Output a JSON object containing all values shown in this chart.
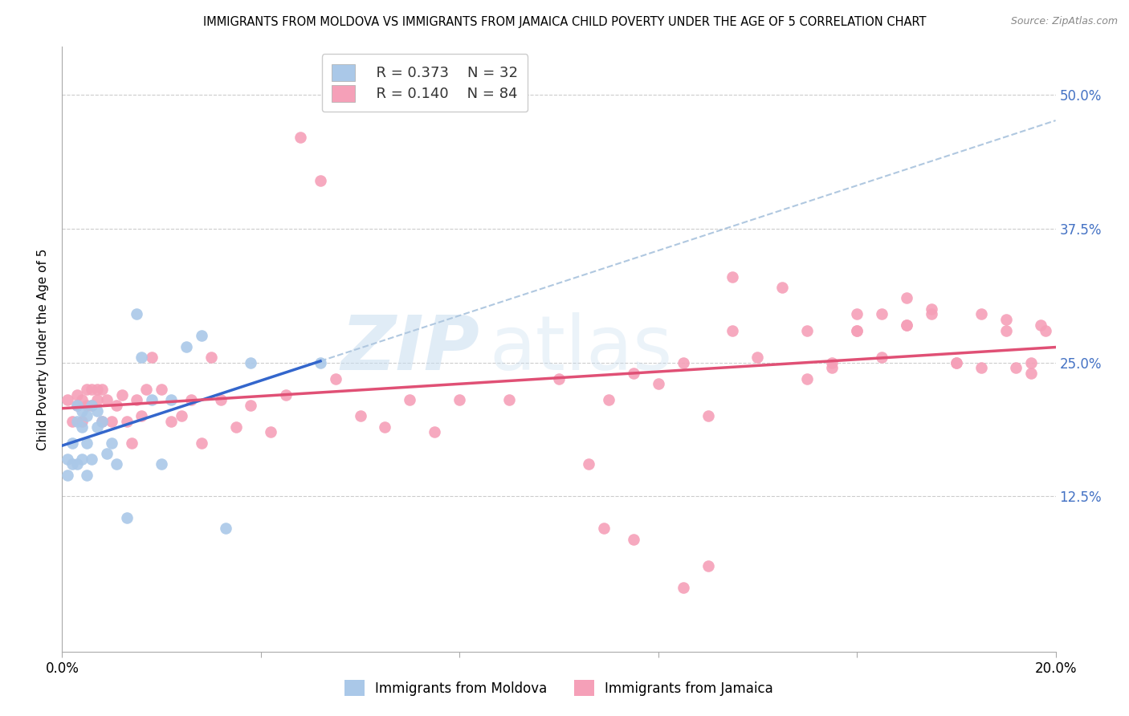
{
  "title": "IMMIGRANTS FROM MOLDOVA VS IMMIGRANTS FROM JAMAICA CHILD POVERTY UNDER THE AGE OF 5 CORRELATION CHART",
  "source": "Source: ZipAtlas.com",
  "ylabel": "Child Poverty Under the Age of 5",
  "ytick_labels": [
    "12.5%",
    "25.0%",
    "37.5%",
    "50.0%"
  ],
  "ytick_values": [
    0.125,
    0.25,
    0.375,
    0.5
  ],
  "xlim": [
    0.0,
    0.2
  ],
  "ylim": [
    -0.02,
    0.545
  ],
  "legend_r1": "R = 0.373",
  "legend_n1": "N = 32",
  "legend_r2": "R = 0.140",
  "legend_n2": "N = 84",
  "color_moldova": "#aac8e8",
  "color_jamaica": "#f5a0b8",
  "line_color_moldova": "#3366cc",
  "line_color_jamaica": "#e05075",
  "dashed_color": "#b0c8e0",
  "watermark_zip": "ZIP",
  "watermark_atlas": "atlas",
  "moldova_x": [
    0.001,
    0.001,
    0.002,
    0.002,
    0.003,
    0.003,
    0.003,
    0.004,
    0.004,
    0.004,
    0.005,
    0.005,
    0.005,
    0.006,
    0.006,
    0.007,
    0.007,
    0.008,
    0.009,
    0.01,
    0.011,
    0.013,
    0.015,
    0.016,
    0.018,
    0.02,
    0.022,
    0.025,
    0.028,
    0.033,
    0.038,
    0.052
  ],
  "moldova_y": [
    0.145,
    0.16,
    0.155,
    0.175,
    0.155,
    0.195,
    0.21,
    0.16,
    0.19,
    0.205,
    0.145,
    0.175,
    0.2,
    0.16,
    0.21,
    0.19,
    0.205,
    0.195,
    0.165,
    0.175,
    0.155,
    0.105,
    0.295,
    0.255,
    0.215,
    0.155,
    0.215,
    0.265,
    0.275,
    0.095,
    0.25,
    0.25
  ],
  "jamaica_x": [
    0.001,
    0.002,
    0.003,
    0.003,
    0.004,
    0.004,
    0.005,
    0.005,
    0.006,
    0.006,
    0.007,
    0.007,
    0.008,
    0.008,
    0.009,
    0.01,
    0.011,
    0.012,
    0.013,
    0.014,
    0.015,
    0.016,
    0.017,
    0.018,
    0.02,
    0.022,
    0.024,
    0.026,
    0.028,
    0.03,
    0.032,
    0.035,
    0.038,
    0.042,
    0.045,
    0.048,
    0.052,
    0.055,
    0.06,
    0.065,
    0.07,
    0.075,
    0.08,
    0.09,
    0.1,
    0.11,
    0.115,
    0.12,
    0.125,
    0.13,
    0.135,
    0.14,
    0.15,
    0.155,
    0.16,
    0.165,
    0.17,
    0.175,
    0.18,
    0.185,
    0.19,
    0.195,
    0.198,
    0.155,
    0.16,
    0.165,
    0.17,
    0.175,
    0.18,
    0.185,
    0.19,
    0.195,
    0.135,
    0.145,
    0.15,
    0.16,
    0.17,
    0.13,
    0.125,
    0.115,
    0.109,
    0.106,
    0.192,
    0.197
  ],
  "jamaica_y": [
    0.215,
    0.195,
    0.21,
    0.22,
    0.195,
    0.215,
    0.21,
    0.225,
    0.21,
    0.225,
    0.215,
    0.225,
    0.195,
    0.225,
    0.215,
    0.195,
    0.21,
    0.22,
    0.195,
    0.175,
    0.215,
    0.2,
    0.225,
    0.255,
    0.225,
    0.195,
    0.2,
    0.215,
    0.175,
    0.255,
    0.215,
    0.19,
    0.21,
    0.185,
    0.22,
    0.46,
    0.42,
    0.235,
    0.2,
    0.19,
    0.215,
    0.185,
    0.215,
    0.215,
    0.235,
    0.215,
    0.24,
    0.23,
    0.25,
    0.2,
    0.28,
    0.255,
    0.235,
    0.25,
    0.28,
    0.295,
    0.285,
    0.3,
    0.25,
    0.245,
    0.29,
    0.24,
    0.28,
    0.245,
    0.28,
    0.255,
    0.285,
    0.295,
    0.25,
    0.295,
    0.28,
    0.25,
    0.33,
    0.32,
    0.28,
    0.295,
    0.31,
    0.06,
    0.04,
    0.085,
    0.095,
    0.155,
    0.245,
    0.285
  ]
}
